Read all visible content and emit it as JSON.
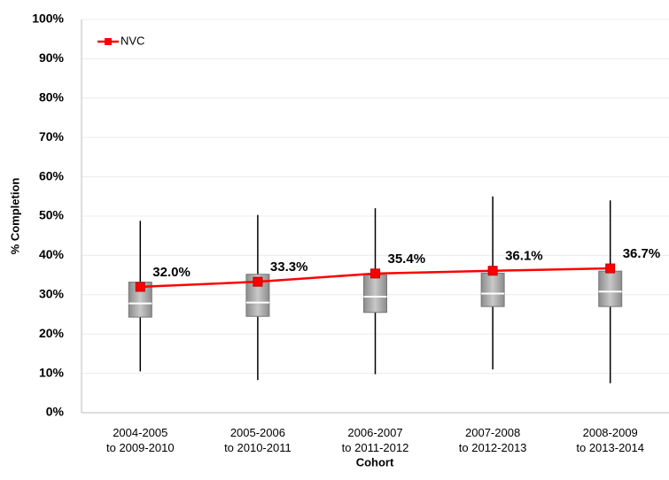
{
  "chart_data": {
    "type": "box-line",
    "categories": [
      [
        "2004-2005",
        "to 2009-2010"
      ],
      [
        "2005-2006",
        "to 2010-2011"
      ],
      [
        "2006-2007",
        "to 2011-2012"
      ],
      [
        "2007-2008",
        "to 2012-2013"
      ],
      [
        "2008-2009",
        "to 2013-2014"
      ]
    ],
    "x_label": "Cohort",
    "y_label": "% Completion",
    "ylim": [
      0,
      100
    ],
    "yticks": [
      {
        "value": 0,
        "label": "0%"
      },
      {
        "value": 10,
        "label": "10%"
      },
      {
        "value": 20,
        "label": "20%"
      },
      {
        "value": 30,
        "label": "30%"
      },
      {
        "value": 40,
        "label": "40%"
      },
      {
        "value": 50,
        "label": "50%"
      },
      {
        "value": 60,
        "label": "60%"
      },
      {
        "value": 70,
        "label": "70%"
      },
      {
        "value": 80,
        "label": "80%"
      },
      {
        "value": 90,
        "label": "90%"
      },
      {
        "value": 100,
        "label": "100%"
      }
    ],
    "grid": true,
    "legend": "upper-left",
    "boxes": [
      {
        "low": 10.5,
        "q1": 24.3,
        "median": 27.8,
        "q3": 33.2,
        "high": 48.8
      },
      {
        "low": 8.3,
        "q1": 24.5,
        "median": 28.0,
        "q3": 35.2,
        "high": 50.3
      },
      {
        "low": 9.8,
        "q1": 25.5,
        "median": 29.5,
        "q3": 35.0,
        "high": 52.0
      },
      {
        "low": 11.0,
        "q1": 27.0,
        "median": 30.3,
        "q3": 35.5,
        "high": 55.0
      },
      {
        "low": 7.5,
        "q1": 27.0,
        "median": 30.8,
        "q3": 36.0,
        "high": 54.0
      }
    ],
    "series": [
      {
        "name": "NVC",
        "color": "#ff0000",
        "values": [
          32.0,
          33.3,
          35.4,
          36.1,
          36.7
        ],
        "value_labels": [
          "32.0%",
          "33.3%",
          "35.4%",
          "36.1%",
          "36.7%"
        ]
      }
    ]
  }
}
